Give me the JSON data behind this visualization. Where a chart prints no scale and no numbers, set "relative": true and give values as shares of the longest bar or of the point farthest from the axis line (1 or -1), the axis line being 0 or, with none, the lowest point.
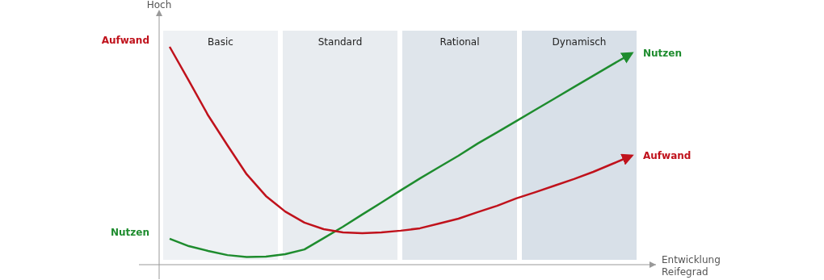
{
  "chart_data": {
    "type": "line",
    "relative": true,
    "xlabel": "Entwicklung\nReifegrad",
    "ylabel": "Hoch",
    "line_style": "solid",
    "categories": [
      null,
      null,
      null,
      null,
      null,
      null,
      null,
      null,
      null,
      null,
      null,
      null,
      null,
      null,
      null,
      null,
      null,
      null,
      null,
      null,
      null,
      null,
      null,
      null,
      null
    ],
    "series": [
      {
        "name": "Nutzen",
        "color": "#1e8c2e",
        "values": [
          0.119,
          0.085,
          0.063,
          0.044,
          0.035,
          0.037,
          0.048,
          0.07,
          0.122,
          0.174,
          0.23,
          0.285,
          0.341,
          0.396,
          0.448,
          0.5,
          0.556,
          0.607,
          0.659,
          0.711,
          0.763,
          0.815,
          0.867,
          0.919,
          0.97
        ]
      },
      {
        "name": "Aufwand",
        "color": "#c0121c",
        "values": [
          1,
          0.844,
          0.685,
          0.548,
          0.415,
          0.315,
          0.244,
          0.193,
          0.163,
          0.148,
          0.144,
          0.148,
          0.156,
          0.167,
          0.189,
          0.211,
          0.241,
          0.27,
          0.304,
          0.333,
          0.363,
          0.393,
          0.426,
          0.463,
          0.5
        ]
      }
    ],
    "annotations": [
      "Basic",
      "Standard",
      "Rational",
      "Dynamisch",
      "Aufwand",
      "Nutzen"
    ]
  }
}
